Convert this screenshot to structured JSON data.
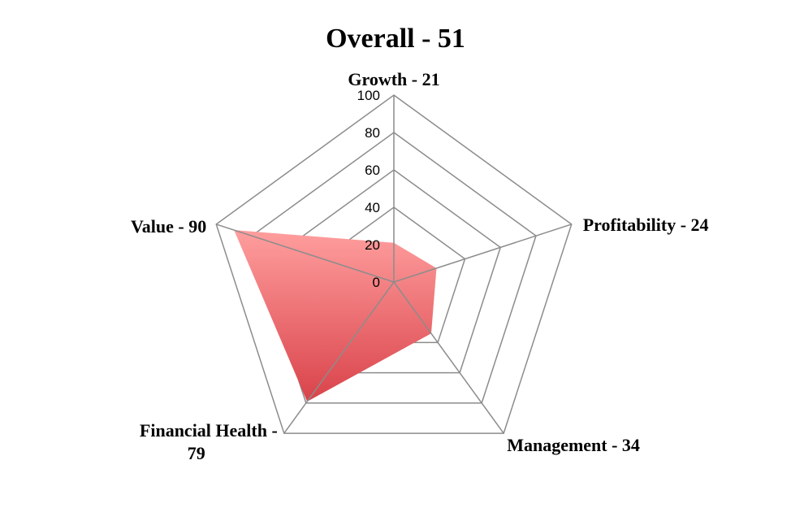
{
  "chart_data": {
    "type": "radar",
    "title": "Overall - 51",
    "axes": [
      {
        "label": "Growth - 21",
        "value": 21
      },
      {
        "label": "Profitability - 24",
        "value": 24
      },
      {
        "label": "Management - 34",
        "value": 34
      },
      {
        "label": "Financial Health - 79",
        "value": 79
      },
      {
        "label": "Value - 90",
        "value": 90
      }
    ],
    "rlim": [
      0,
      100
    ],
    "ticks": [
      "0",
      "20",
      "40",
      "60",
      "80",
      "100"
    ],
    "grid": true,
    "legend": "none",
    "fill_gradient": [
      "#ff9e9e",
      "#d9434a"
    ],
    "grid_color": "#8c8c8c"
  }
}
